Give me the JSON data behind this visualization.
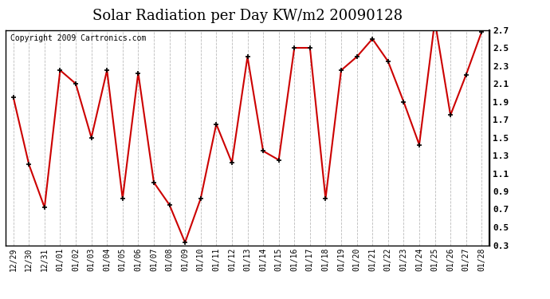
{
  "title": "Solar Radiation per Day KW/m2 20090128",
  "copyright": "Copyright 2009 Cartronics.com",
  "dates": [
    "12/29",
    "12/30",
    "12/31",
    "01/01",
    "01/02",
    "01/03",
    "01/04",
    "01/05",
    "01/06",
    "01/07",
    "01/08",
    "01/09",
    "01/10",
    "01/11",
    "01/12",
    "01/13",
    "01/14",
    "01/15",
    "01/16",
    "01/17",
    "01/18",
    "01/19",
    "01/20",
    "01/21",
    "01/22",
    "01/23",
    "01/24",
    "01/25",
    "01/26",
    "01/27",
    "01/28"
  ],
  "values": [
    1.95,
    1.2,
    0.72,
    2.25,
    2.1,
    1.5,
    2.25,
    0.82,
    2.22,
    1.0,
    0.75,
    0.33,
    0.82,
    1.65,
    1.22,
    2.4,
    1.35,
    1.25,
    2.5,
    2.5,
    0.82,
    2.25,
    2.4,
    2.6,
    2.35,
    1.9,
    1.42,
    2.8,
    1.75,
    2.2,
    2.68
  ],
  "line_color": "#cc0000",
  "marker_color": "#000000",
  "ylim": [
    0.3,
    2.7
  ],
  "yticks": [
    0.3,
    0.5,
    0.7,
    0.9,
    1.1,
    1.3,
    1.5,
    1.7,
    1.9,
    2.1,
    2.3,
    2.5,
    2.7
  ],
  "bg_color": "#ffffff",
  "grid_color": "#aaaaaa",
  "title_fontsize": 13,
  "copyright_fontsize": 7,
  "tick_fontsize": 7,
  "right_ytick_fontsize": 8
}
